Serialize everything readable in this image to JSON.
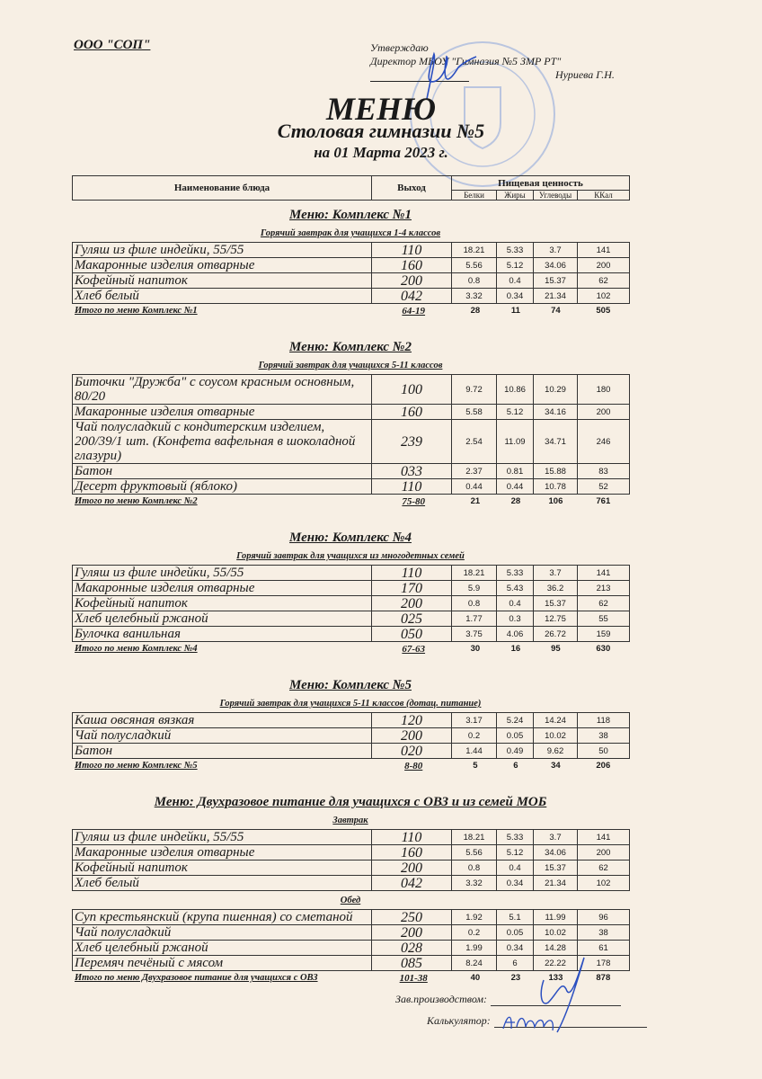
{
  "header": {
    "organization": "ООО \"СОП\"",
    "approve_label": "Утверждаю",
    "director_line": "Директор МБОУ \"Гимназия №5 ЗМР РТ\"",
    "director_name": "Нуриева Г.Н.",
    "title": "МЕНЮ",
    "subtitle": "Столовая гимназии №5",
    "date_line": "на 01 Марта 2023 г."
  },
  "columns": {
    "name": "Наименование блюда",
    "output": "Выход",
    "nutrition": "Пищевая ценность",
    "protein": "Белки",
    "fat": "Жиры",
    "carbs": "Углеводы",
    "kcal": "ККал"
  },
  "sections": [
    {
      "title": "Меню: Комплекс №1",
      "groups": [
        {
          "subtitle": "Горячий завтрак для учащихся 1-4 классов",
          "rows": [
            {
              "name": "Гуляш из филе индейки, 55/55",
              "output": "110",
              "protein": "18.21",
              "fat": "5.33",
              "carbs": "3.7",
              "kcal": "141"
            },
            {
              "name": "Макаронные изделия отварные",
              "output": "160",
              "protein": "5.56",
              "fat": "5.12",
              "carbs": "34.06",
              "kcal": "200"
            },
            {
              "name": "Кофейный напиток",
              "output": "200",
              "protein": "0.8",
              "fat": "0.4",
              "carbs": "15.37",
              "kcal": "62"
            },
            {
              "name": "Хлеб белый",
              "output": "042",
              "protein": "3.32",
              "fat": "0.34",
              "carbs": "21.34",
              "kcal": "102"
            }
          ]
        }
      ],
      "total": {
        "label": "Итого по меню Комплекс №1",
        "output": "64-19",
        "protein": "28",
        "fat": "11",
        "carbs": "74",
        "kcal": "505"
      }
    },
    {
      "title": "Меню: Комплекс №2",
      "groups": [
        {
          "subtitle": "Горячий завтрак для учащихся 5-11 классов",
          "rows": [
            {
              "name": "Биточки  \"Дружба\" с соусом красным основным, 80/20",
              "output": "100",
              "protein": "9.72",
              "fat": "10.86",
              "carbs": "10.29",
              "kcal": "180"
            },
            {
              "name": "Макаронные изделия отварные",
              "output": "160",
              "protein": "5.58",
              "fat": "5.12",
              "carbs": "34.16",
              "kcal": "200"
            },
            {
              "name": "Чай полусладкий с кондитерским изделием, 200/39/1 шт. (Конфета вафельная в шоколадной глазури)",
              "output": "239",
              "protein": "2.54",
              "fat": "11.09",
              "carbs": "34.71",
              "kcal": "246"
            },
            {
              "name": "Батон",
              "output": "033",
              "protein": "2.37",
              "fat": "0.81",
              "carbs": "15.88",
              "kcal": "83"
            },
            {
              "name": "Десерт фруктовый (яблоко)",
              "output": "110",
              "protein": "0.44",
              "fat": "0.44",
              "carbs": "10.78",
              "kcal": "52"
            }
          ]
        }
      ],
      "total": {
        "label": "Итого по меню Комплекс №2",
        "output": "75-80",
        "protein": "21",
        "fat": "28",
        "carbs": "106",
        "kcal": "761"
      }
    },
    {
      "title": "Меню: Комплекс №4",
      "groups": [
        {
          "subtitle": "Горячий завтрак для учащихся из многодетных семей",
          "rows": [
            {
              "name": "Гуляш из филе индейки, 55/55",
              "output": "110",
              "protein": "18.21",
              "fat": "5.33",
              "carbs": "3.7",
              "kcal": "141"
            },
            {
              "name": "Макаронные изделия отварные",
              "output": "170",
              "protein": "5.9",
              "fat": "5.43",
              "carbs": "36.2",
              "kcal": "213"
            },
            {
              "name": "Кофейный напиток",
              "output": "200",
              "protein": "0.8",
              "fat": "0.4",
              "carbs": "15.37",
              "kcal": "62"
            },
            {
              "name": "Хлеб  целебный ржаной",
              "output": "025",
              "protein": "1.77",
              "fat": "0.3",
              "carbs": "12.75",
              "kcal": "55"
            },
            {
              "name": "Булочка ванильная",
              "output": "050",
              "protein": "3.75",
              "fat": "4.06",
              "carbs": "26.72",
              "kcal": "159"
            }
          ]
        }
      ],
      "total": {
        "label": "Итого по меню Комплекс №4",
        "output": "67-63",
        "protein": "30",
        "fat": "16",
        "carbs": "95",
        "kcal": "630"
      }
    },
    {
      "title": "Меню: Комплекс №5",
      "groups": [
        {
          "subtitle": "Горячий завтрак для учащихся 5-11 классов (дотац. питание)",
          "rows": [
            {
              "name": "Каша овсяная вязкая",
              "output": "120",
              "protein": "3.17",
              "fat": "5.24",
              "carbs": "14.24",
              "kcal": "118"
            },
            {
              "name": "Чай полусладкий",
              "output": "200",
              "protein": "0.2",
              "fat": "0.05",
              "carbs": "10.02",
              "kcal": "38"
            },
            {
              "name": "Батон",
              "output": "020",
              "protein": "1.44",
              "fat": "0.49",
              "carbs": "9.62",
              "kcal": "50"
            }
          ]
        }
      ],
      "total": {
        "label": "Итого по меню Комплекс №5",
        "output": "8-80",
        "protein": "5",
        "fat": "6",
        "carbs": "34",
        "kcal": "206"
      }
    },
    {
      "title": "Меню: Двухразовое питание для учащихся с ОВЗ и из семей МОБ",
      "groups": [
        {
          "subtitle": "Завтрак",
          "rows": [
            {
              "name": "Гуляш из филе индейки, 55/55",
              "output": "110",
              "protein": "18.21",
              "fat": "5.33",
              "carbs": "3.7",
              "kcal": "141"
            },
            {
              "name": "Макаронные изделия отварные",
              "output": "160",
              "protein": "5.56",
              "fat": "5.12",
              "carbs": "34.06",
              "kcal": "200"
            },
            {
              "name": "Кофейный напиток",
              "output": "200",
              "protein": "0.8",
              "fat": "0.4",
              "carbs": "15.37",
              "kcal": "62"
            },
            {
              "name": "Хлеб белый",
              "output": "042",
              "protein": "3.32",
              "fat": "0.34",
              "carbs": "21.34",
              "kcal": "102"
            }
          ]
        },
        {
          "subtitle": "Обед",
          "rows": [
            {
              "name": "Суп крестьянский (крупа пшенная) со сметаной",
              "output": "250",
              "protein": "1.92",
              "fat": "5.1",
              "carbs": "11.99",
              "kcal": "96"
            },
            {
              "name": "Чай полусладкий",
              "output": "200",
              "protein": "0.2",
              "fat": "0.05",
              "carbs": "10.02",
              "kcal": "38"
            },
            {
              "name": "Хлеб  целебный ржаной",
              "output": "028",
              "protein": "1.99",
              "fat": "0.34",
              "carbs": "14.28",
              "kcal": "61"
            },
            {
              "name": "Перемяч печёный с мясом",
              "output": "085",
              "protein": "8.24",
              "fat": "6",
              "carbs": "22.22",
              "kcal": "178"
            }
          ]
        }
      ],
      "total": {
        "label": "Итого по меню Двухразовое питание для учащихся с ОВЗ",
        "output": "101-38",
        "protein": "40",
        "fat": "23",
        "carbs": "133",
        "kcal": "878"
      }
    }
  ],
  "signatures": {
    "production_head": "Зав.производством:",
    "calculator": "Калькулятор:"
  },
  "colors": {
    "paper": "#f7efe4",
    "stamp": "#8fa6d6",
    "ink": "#2b4fc0"
  }
}
